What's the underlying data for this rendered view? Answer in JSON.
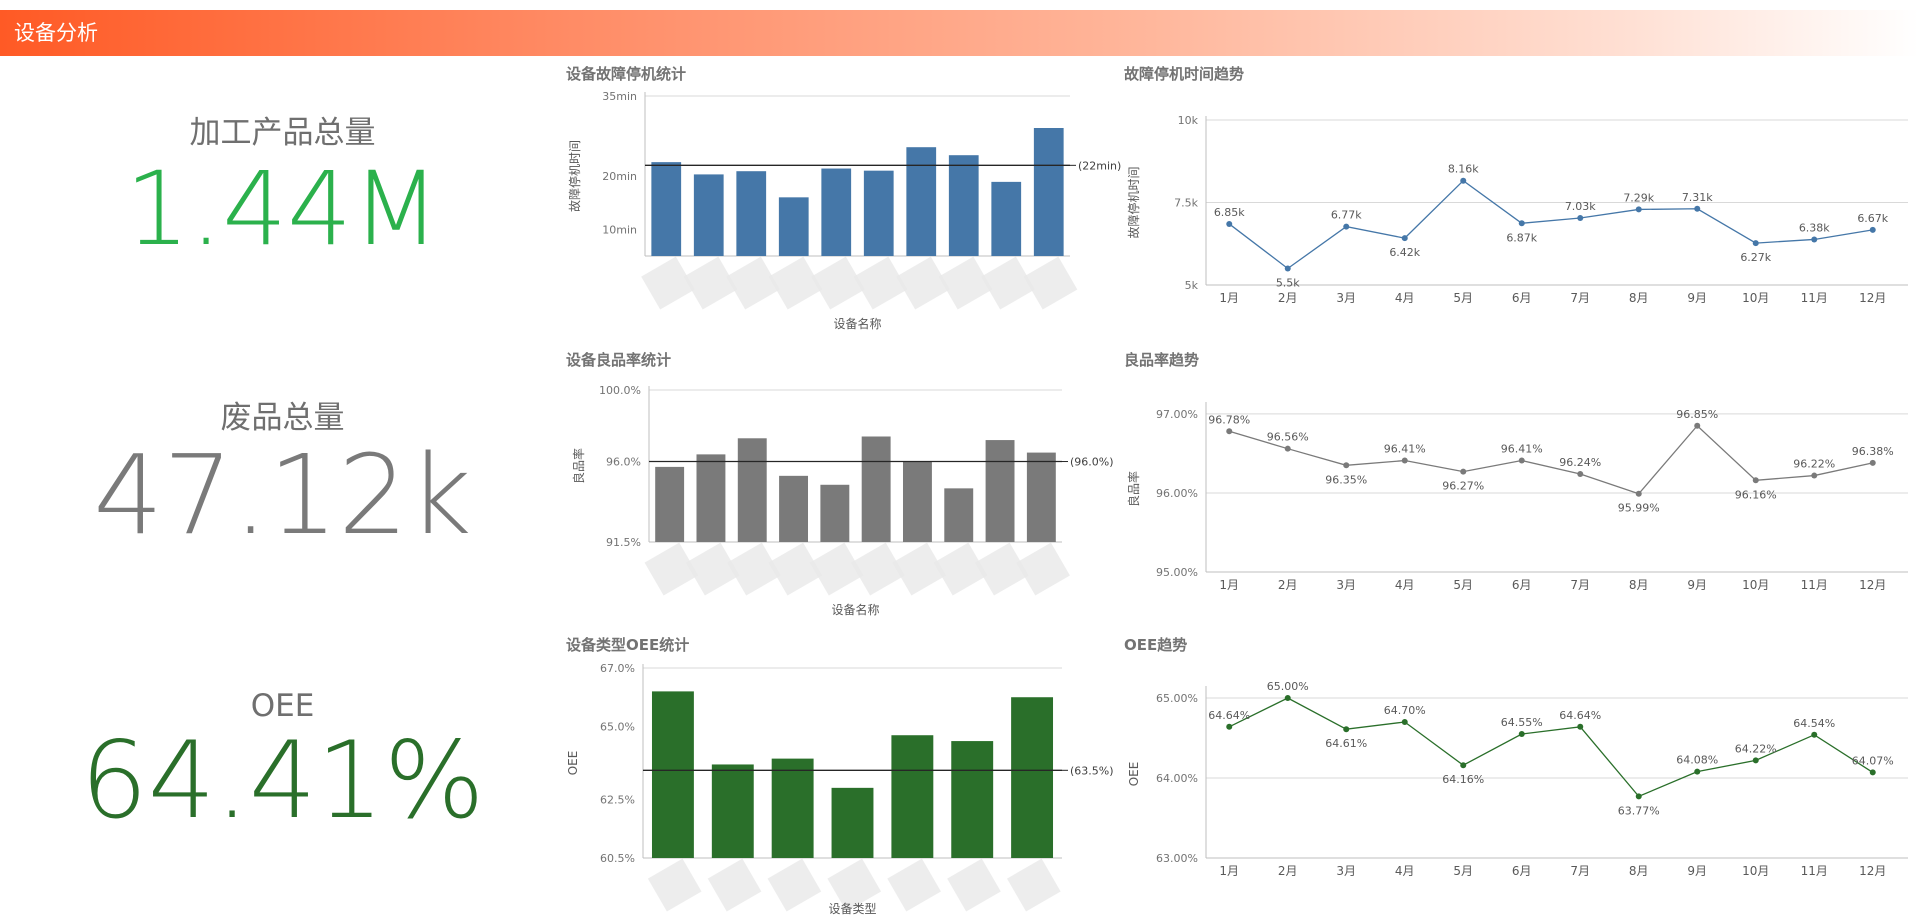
{
  "header": {
    "title": "设备分析"
  },
  "kpis": [
    {
      "label": "加工产品总量",
      "value": "1.44M",
      "color": "#2bb14c"
    },
    {
      "label": "废品总量",
      "value": "47.12k",
      "color": "#7a7a7a"
    },
    {
      "label": "OEE",
      "value": "64.41%",
      "color": "#2a6f2a"
    }
  ],
  "chart_data": [
    {
      "type": "bar",
      "title": "设备故障停机统计",
      "xlabel": "设备名称",
      "ylabel": "故障停机时间",
      "categories": [
        "",
        "",
        "",
        "",
        "",
        "",
        "",
        "",
        "",
        ""
      ],
      "values": [
        22.6,
        20.3,
        20.9,
        16.0,
        21.4,
        21.0,
        25.4,
        23.9,
        18.9,
        29.0
      ],
      "yticks": [
        "35min",
        "20min",
        "10min"
      ],
      "yticks_values": [
        35,
        20,
        10
      ],
      "ylim": [
        5,
        35
      ],
      "reference_line": {
        "value": 22,
        "label": "(22min)"
      },
      "color": "#4577a8"
    },
    {
      "type": "line",
      "title": "故障停机时间趋势",
      "xlabel": "",
      "ylabel": "故障停机时间",
      "categories": [
        "1月",
        "2月",
        "3月",
        "4月",
        "5月",
        "6月",
        "7月",
        "8月",
        "9月",
        "10月",
        "11月",
        "12月"
      ],
      "values": [
        6.85,
        5.5,
        6.77,
        6.42,
        8.16,
        6.87,
        7.03,
        7.29,
        7.31,
        6.27,
        6.38,
        6.67
      ],
      "labels": [
        "6.85k",
        "5.5k",
        "6.77k",
        "6.42k",
        "8.16k",
        "6.87k",
        "7.03k",
        "7.29k",
        "7.31k",
        "6.27k",
        "6.38k",
        "6.67k"
      ],
      "yticks": [
        "10k",
        "7.5k",
        "5k"
      ],
      "yticks_values": [
        10,
        7.5,
        5
      ],
      "ylim": [
        5,
        10
      ],
      "color": "#4577a8"
    },
    {
      "type": "bar",
      "title": "设备良品率统计",
      "xlabel": "设备名称",
      "ylabel": "良品率",
      "categories": [
        "",
        "",
        "",
        "",
        "",
        "",
        "",
        "",
        "",
        ""
      ],
      "values": [
        95.7,
        96.4,
        97.3,
        95.2,
        94.7,
        97.4,
        96.0,
        94.5,
        97.2,
        96.5
      ],
      "yticks": [
        "100.0%",
        "96.0%",
        "91.5%"
      ],
      "yticks_values": [
        100,
        96,
        91.5
      ],
      "ylim": [
        91.5,
        100
      ],
      "reference_line": {
        "value": 96,
        "label": "(96.0%)"
      },
      "color": "#7a7a7a"
    },
    {
      "type": "line",
      "title": "良品率趋势",
      "xlabel": "",
      "ylabel": "良品率",
      "categories": [
        "1月",
        "2月",
        "3月",
        "4月",
        "5月",
        "6月",
        "7月",
        "8月",
        "9月",
        "10月",
        "11月",
        "12月"
      ],
      "values": [
        96.78,
        96.56,
        96.35,
        96.41,
        96.27,
        96.41,
        96.24,
        95.99,
        96.85,
        96.16,
        96.22,
        96.38
      ],
      "labels": [
        "96.78%",
        "96.56%",
        "96.35%",
        "96.41%",
        "96.27%",
        "96.41%",
        "96.24%",
        "95.99%",
        "96.85%",
        "96.16%",
        "96.22%",
        "96.38%"
      ],
      "yticks": [
        "97.00%",
        "96.00%",
        "95.00%"
      ],
      "yticks_values": [
        97,
        96,
        95
      ],
      "ylim": [
        95,
        97.1
      ],
      "color": "#7a7a7a"
    },
    {
      "type": "bar",
      "title": "设备类型OEE统计",
      "xlabel": "设备类型",
      "ylabel": "OEE",
      "categories": [
        "",
        "",
        "",
        "",
        "",
        "",
        ""
      ],
      "values": [
        66.2,
        63.7,
        63.9,
        62.9,
        64.7,
        64.5,
        66.0
      ],
      "yticks": [
        "67.0%",
        "65.0%",
        "62.5%",
        "60.5%"
      ],
      "yticks_values": [
        67,
        65,
        62.5,
        60.5
      ],
      "ylim": [
        60.5,
        67
      ],
      "reference_line": {
        "value": 63.5,
        "label": "(63.5%)"
      },
      "color": "#2a6f2a"
    },
    {
      "type": "line",
      "title": "OEE趋势",
      "xlabel": "",
      "ylabel": "OEE",
      "categories": [
        "1月",
        "2月",
        "3月",
        "4月",
        "5月",
        "6月",
        "7月",
        "8月",
        "9月",
        "10月",
        "11月",
        "12月"
      ],
      "values": [
        64.64,
        65.0,
        64.61,
        64.7,
        64.16,
        64.55,
        64.64,
        63.77,
        64.08,
        64.22,
        64.54,
        64.07
      ],
      "labels": [
        "64.64%",
        "65.00%",
        "64.61%",
        "64.70%",
        "64.16%",
        "64.55%",
        "64.64%",
        "63.77%",
        "64.08%",
        "64.22%",
        "64.54%",
        "64.07%"
      ],
      "yticks": [
        "65.00%",
        "64.00%",
        "63.00%"
      ],
      "yticks_values": [
        65,
        64,
        63
      ],
      "ylim": [
        63,
        65.1
      ],
      "color": "#2a6f2a"
    }
  ]
}
